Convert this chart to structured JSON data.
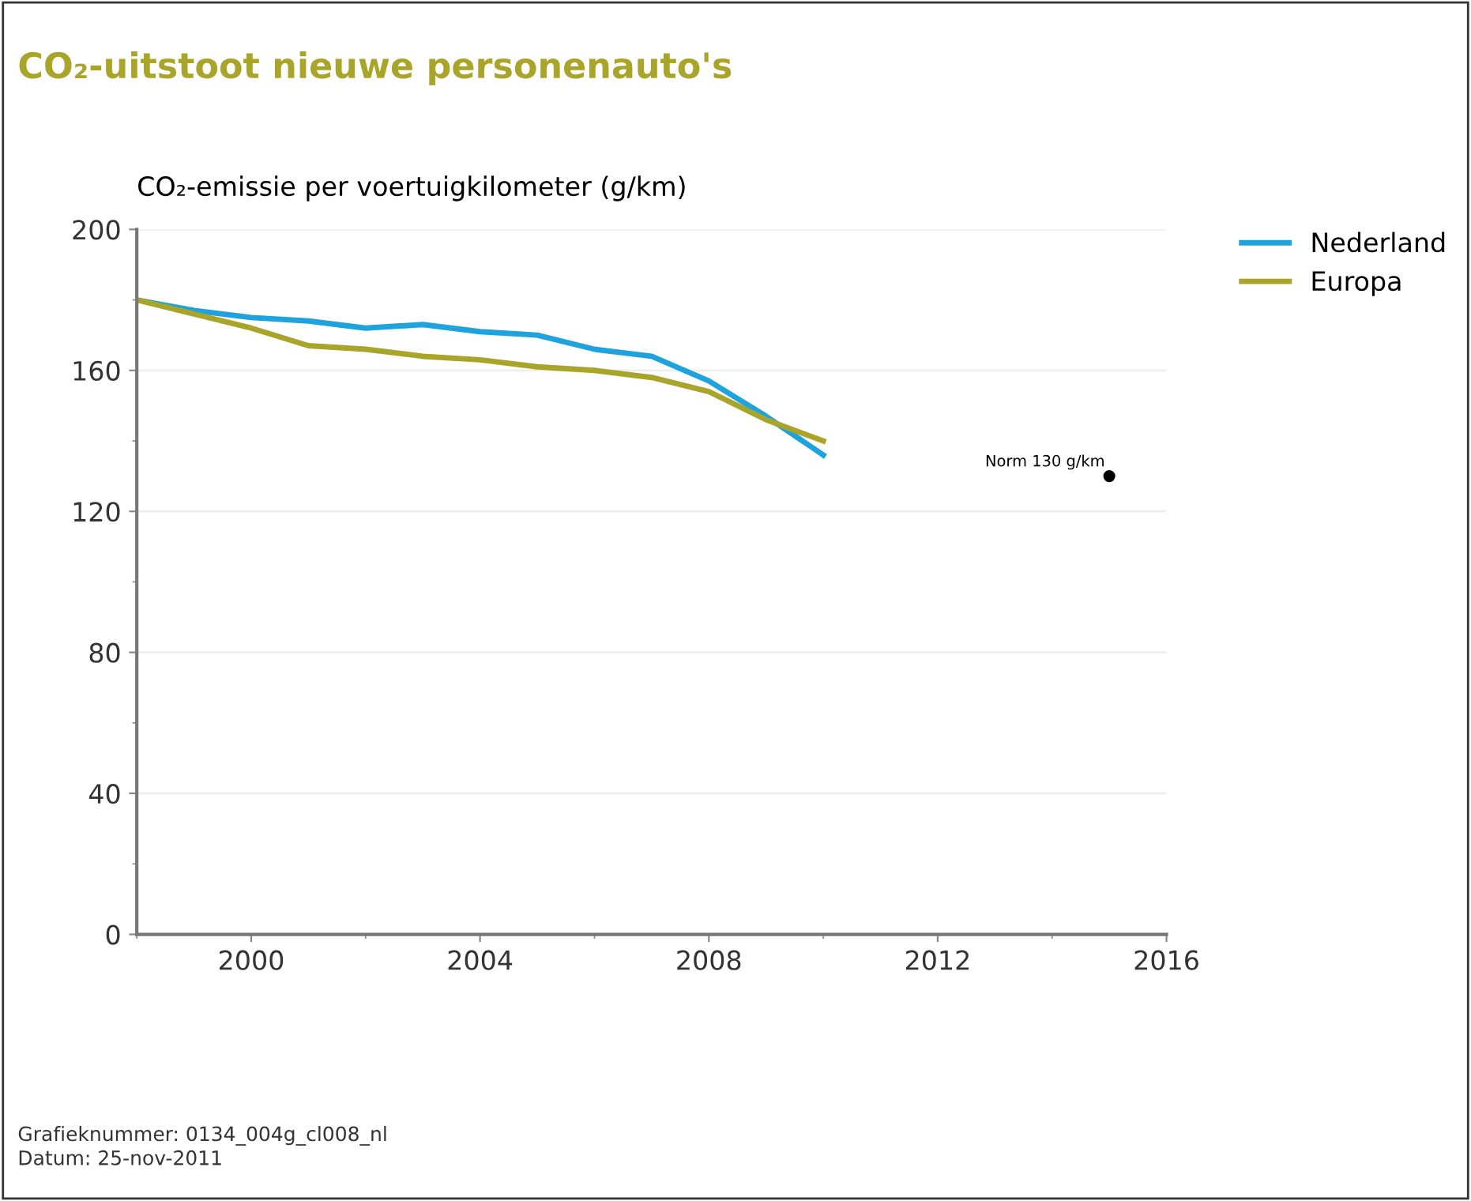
{
  "chart_data": {
    "type": "line",
    "title": "CO₂-uitstoot nieuwe personenauto's",
    "ylabel": "CO₂-emissie per voertuigkilometer (g/km)",
    "x": [
      1998,
      1999,
      2000,
      2001,
      2002,
      2003,
      2004,
      2005,
      2006,
      2007,
      2008,
      2009,
      2010
    ],
    "series": [
      {
        "name": "Nederland",
        "color": "#1fa3dc",
        "values": [
          180,
          177,
          175,
          174,
          172,
          173,
          171,
          170,
          166,
          164,
          157,
          147,
          136
        ]
      },
      {
        "name": "Europa",
        "color": "#a8a52a",
        "values": [
          180,
          176,
          172,
          167,
          166,
          164,
          163,
          161,
          160,
          158,
          154,
          146,
          140
        ]
      },
      {
        "type": "scatter",
        "color": "#000000",
        "x": [
          2015
        ],
        "values": [
          130
        ]
      }
    ],
    "xlim": [
      1998,
      2016
    ],
    "xticks": [
      2000,
      2004,
      2008,
      2012,
      2016
    ],
    "ylim": [
      0,
      200
    ],
    "yticks": [
      0,
      40,
      80,
      120,
      160,
      200
    ],
    "grid": "y",
    "legend": "top right",
    "line_style": "solid",
    "annotations": [
      {
        "text": "Norm 130 g/km",
        "x": 2015,
        "y": 130
      },
      "Grafieknummer: 0134_004g_cl008_nl",
      "Datum: 25-nov-2011"
    ]
  }
}
